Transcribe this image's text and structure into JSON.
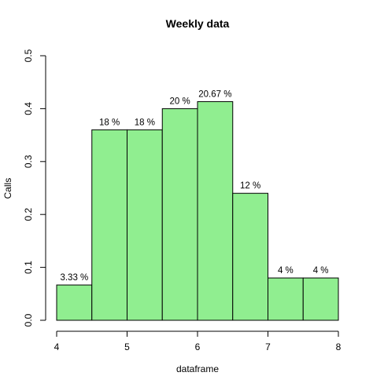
{
  "chart_data": {
    "type": "bar",
    "title": "Weekly data",
    "xlabel": "dataframe",
    "ylabel": "Calls",
    "bins": [
      {
        "x0": 4.0,
        "x1": 4.5,
        "value": 0.0667,
        "label": "3.33 %"
      },
      {
        "x0": 4.5,
        "x1": 5.0,
        "value": 0.36,
        "label": "18 %"
      },
      {
        "x0": 5.0,
        "x1": 5.5,
        "value": 0.36,
        "label": "18 %"
      },
      {
        "x0": 5.5,
        "x1": 6.0,
        "value": 0.4,
        "label": "20 %"
      },
      {
        "x0": 6.0,
        "x1": 6.5,
        "value": 0.4133,
        "label": "20.67 %"
      },
      {
        "x0": 6.5,
        "x1": 7.0,
        "value": 0.24,
        "label": "12 %"
      },
      {
        "x0": 7.0,
        "x1": 7.5,
        "value": 0.08,
        "label": "4 %"
      },
      {
        "x0": 7.5,
        "x1": 8.0,
        "value": 0.08,
        "label": "4 %"
      }
    ],
    "xlim": [
      4,
      8
    ],
    "ylim": [
      0,
      0.5
    ],
    "x_ticks": [
      "4",
      "5",
      "6",
      "7",
      "8"
    ],
    "y_ticks": [
      "0.0",
      "0.1",
      "0.2",
      "0.3",
      "0.4",
      "0.5"
    ],
    "bar_color": "#90EE90",
    "grid": false
  }
}
